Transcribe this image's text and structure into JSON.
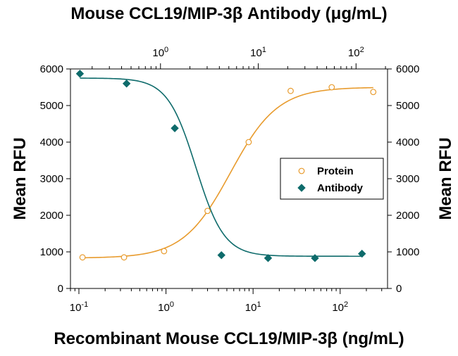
{
  "chart_data": {
    "type": "scatter",
    "title_top": "Mouse CCL19/MIP-3β Antibody (μg/mL)",
    "title_bottom": "Recombinant Mouse CCL19/MIP-3β (ng/mL)",
    "ylabel_left": "Mean RFU",
    "ylabel_right": "Mean RFU",
    "x_scale": "log",
    "bottom_axis": {
      "range": [
        0.08,
        350
      ],
      "ticks": [
        {
          "value": 0.1,
          "base": "10",
          "exp": "-1"
        },
        {
          "value": 1,
          "base": "10",
          "exp": "0"
        },
        {
          "value": 10,
          "base": "10",
          "exp": "1"
        },
        {
          "value": 100,
          "base": "10",
          "exp": "2"
        }
      ]
    },
    "top_axis": {
      "range": [
        0.12,
        210
      ],
      "ticks": [
        {
          "value": 1,
          "base": "10",
          "exp": "0"
        },
        {
          "value": 10,
          "base": "10",
          "exp": "1"
        },
        {
          "value": 100,
          "base": "10",
          "exp": "2"
        }
      ]
    },
    "ylim": [
      0,
      6000
    ],
    "yticks": [
      "0",
      "1000",
      "2000",
      "3000",
      "4000",
      "5000",
      "6000"
    ],
    "legend_position": "center-right",
    "series": [
      {
        "name": "Protein",
        "axis": "bottom",
        "marker": "open-circle",
        "color": "#E89B2D",
        "x": [
          0.11,
          0.33,
          0.95,
          3.0,
          8.9,
          27,
          80,
          240
        ],
        "y": [
          850,
          850,
          1020,
          2120,
          4000,
          5400,
          5500,
          5370
        ]
      },
      {
        "name": "Antibody",
        "axis": "top",
        "marker": "filled-diamond",
        "color": "#0E6B6B",
        "x": [
          0.15,
          0.45,
          1.4,
          4.2,
          12.6,
          38,
          115
        ],
        "y": [
          5870,
          5600,
          4380,
          910,
          830,
          830,
          950
        ]
      }
    ],
    "fits": [
      {
        "series": "Protein",
        "bottom": 830,
        "top": 5500,
        "ec50": 5.5,
        "hill": 1.6
      },
      {
        "series": "Antibody",
        "bottom": 880,
        "top": 5750,
        "ic50": 2.3,
        "hill": 3.0
      }
    ]
  }
}
